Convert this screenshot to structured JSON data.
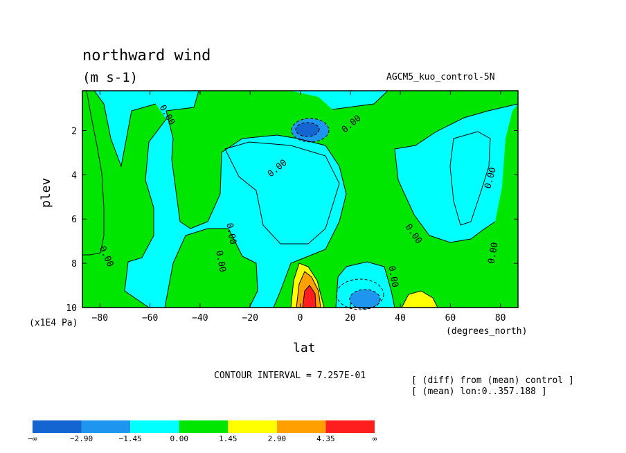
{
  "chart_data": {
    "type": "contour",
    "title": "northward wind",
    "units": "(m s-1)",
    "dataset_label": "AGCM5_kuo_control-5N",
    "xlabel": "lat",
    "x_units": "(degrees_north)",
    "ylabel": "plev",
    "y_units": "(x1E4 Pa)",
    "xlim": [
      -87,
      87
    ],
    "ylim": [
      10,
      0.2
    ],
    "x_ticks": [
      -80,
      -60,
      -40,
      -20,
      0,
      20,
      40,
      60,
      80
    ],
    "y_ticks": [
      2,
      4,
      6,
      8,
      10
    ],
    "contour_interval_text": "CONTOUR INTERVAL = 7.257E-01",
    "contour_labels": [
      "0.00",
      "0.00",
      "0.00",
      "0.00",
      "0.00",
      "0.00",
      "0.00",
      "0.00",
      "0.00",
      "0.00"
    ],
    "notes": [
      "[ (diff) from (mean) control ]",
      "[ (mean) lon:0..357.188 ]"
    ],
    "colorbar": {
      "colors": [
        "#1464d2",
        "#1e96f0",
        "#00ffff",
        "#00e600",
        "#ffff00",
        "#ffa000",
        "#ff1e1e"
      ],
      "labels": [
        "-∞",
        "-2.90",
        "-1.45",
        "0.00",
        "1.45",
        "2.90",
        "4.35",
        "∞"
      ]
    },
    "features": [
      {
        "kind": "negative",
        "level": "< -1.45",
        "lat": 3,
        "plev": 2.0
      },
      {
        "kind": "negative",
        "level": "< -1.45",
        "lat": 27,
        "plev": 9.6
      },
      {
        "kind": "positive",
        "level": "> 4.35",
        "lat": 3,
        "plev": 9.4
      },
      {
        "kind": "positive",
        "level": "> 1.45",
        "lat": 48,
        "plev": 9.8
      }
    ]
  }
}
